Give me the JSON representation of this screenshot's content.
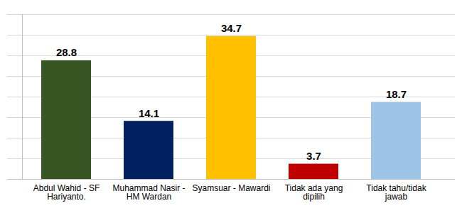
{
  "chart_data": {
    "type": "bar",
    "categories": [
      "Abdul Wahid - SF Hariyanto.",
      "Muhammad Nasir - HM Wardan",
      "Syamsuar - Mawardi",
      "Tidak ada yang dipilih",
      "Tidak tahu/tidak jawab"
    ],
    "values": [
      28.8,
      14.1,
      34.7,
      3.7,
      18.7
    ],
    "colors": [
      "#375623",
      "#002060",
      "#ffc000",
      "#c00000",
      "#9dc3e6"
    ],
    "ylim": [
      0,
      40
    ],
    "yticks": [
      0,
      5,
      10,
      15,
      20,
      25,
      30,
      35,
      40
    ],
    "grid": true,
    "data_labels": true,
    "tick_labels": "x"
  }
}
